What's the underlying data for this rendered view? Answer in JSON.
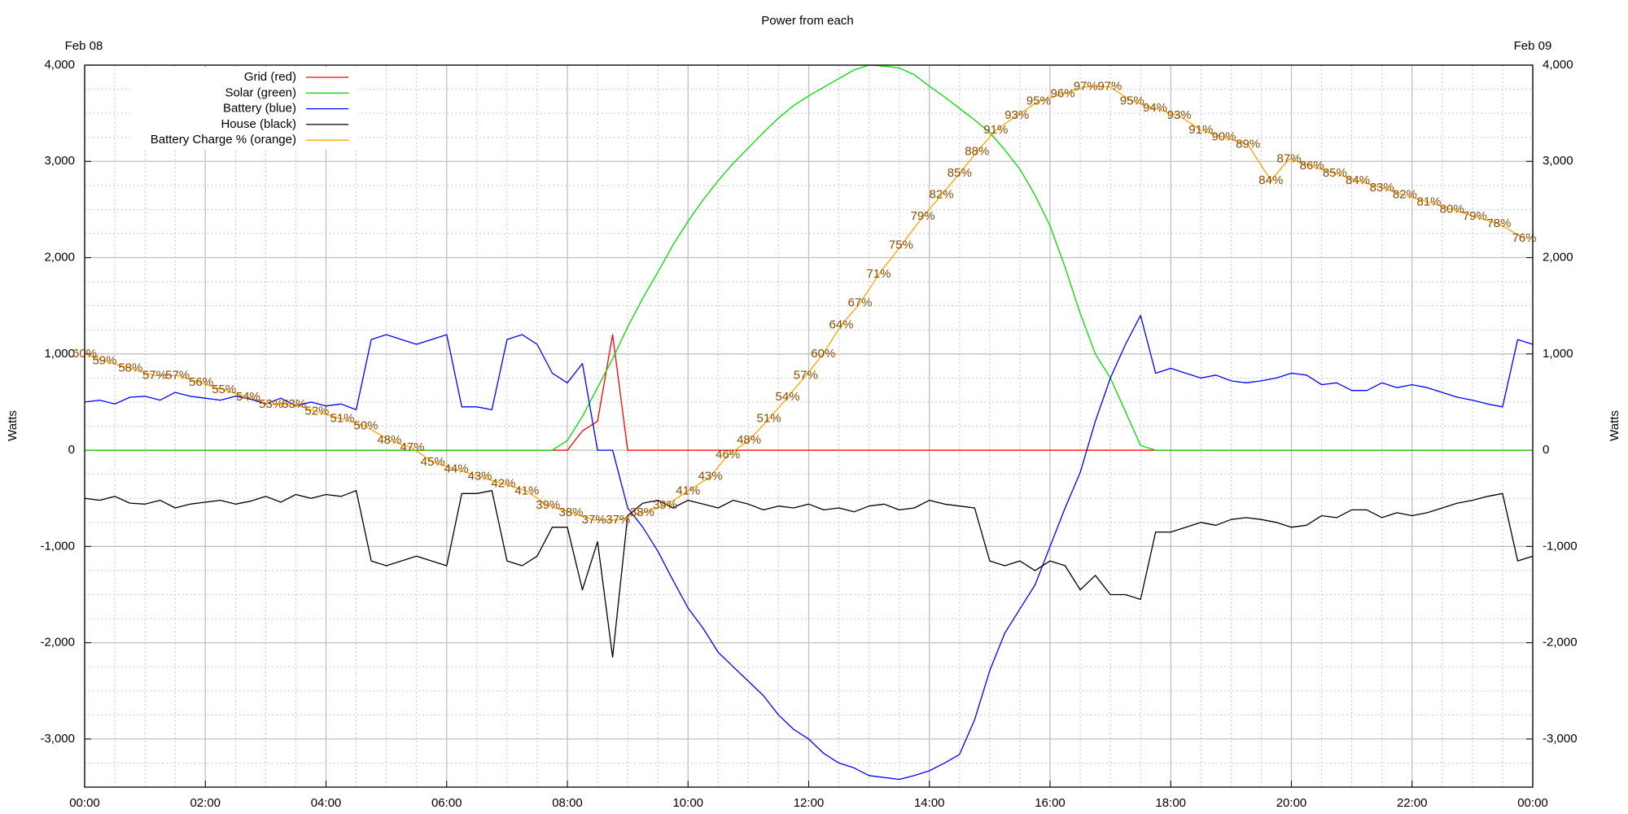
{
  "chart_data": {
    "type": "line",
    "title": "Power from each",
    "ylabel": "Watts",
    "y2label": "Watts",
    "top_labels": [
      "Feb 08",
      "Feb 09"
    ],
    "xlim": [
      0,
      24
    ],
    "xticks": [
      {
        "value": 0,
        "label": "00:00"
      },
      {
        "value": 2,
        "label": "02:00"
      },
      {
        "value": 4,
        "label": "04:00"
      },
      {
        "value": 6,
        "label": "06:00"
      },
      {
        "value": 8,
        "label": "08:00"
      },
      {
        "value": 10,
        "label": "10:00"
      },
      {
        "value": 12,
        "label": "12:00"
      },
      {
        "value": 14,
        "label": "14:00"
      },
      {
        "value": 16,
        "label": "16:00"
      },
      {
        "value": 18,
        "label": "18:00"
      },
      {
        "value": 20,
        "label": "20:00"
      },
      {
        "value": 22,
        "label": "22:00"
      },
      {
        "value": 24,
        "label": "00:00"
      }
    ],
    "ylim": [
      -3500,
      4000
    ],
    "yticks": [
      {
        "value": -3000,
        "label": "-3,000"
      },
      {
        "value": -2000,
        "label": "-2,000"
      },
      {
        "value": -1000,
        "label": "-1,000"
      },
      0,
      {
        "value": 1000,
        "label": "1,000"
      },
      {
        "value": 2000,
        "label": "2,000"
      },
      {
        "value": 3000,
        "label": "3,000"
      },
      {
        "value": 4000,
        "label": "4,000"
      }
    ],
    "y2lim": [
      -3500,
      4000
    ],
    "y2ticks": [
      {
        "value": -3000,
        "label": "-3,000"
      },
      {
        "value": -2000,
        "label": "-2,000"
      },
      {
        "value": -1000,
        "label": "-1,000"
      },
      0,
      {
        "value": 1000,
        "label": "1,000"
      },
      {
        "value": 2000,
        "label": "2,000"
      },
      {
        "value": 3000,
        "label": "3,000"
      },
      {
        "value": 4000,
        "label": "4,000"
      }
    ],
    "y3lim": [
      0,
      100
    ],
    "grid": true,
    "legend": "upper left",
    "x": [
      0,
      0.25,
      0.5,
      0.75,
      1,
      1.25,
      1.5,
      1.75,
      2,
      2.25,
      2.5,
      2.75,
      3,
      3.25,
      3.5,
      3.75,
      4,
      4.25,
      4.5,
      4.75,
      5,
      5.25,
      5.5,
      5.75,
      6,
      6.25,
      6.5,
      6.75,
      7,
      7.25,
      7.5,
      7.75,
      8,
      8.25,
      8.5,
      8.75,
      9,
      9.25,
      9.5,
      9.75,
      10,
      10.25,
      10.5,
      10.75,
      11,
      11.25,
      11.5,
      11.75,
      12,
      12.25,
      12.5,
      12.75,
      13,
      13.25,
      13.5,
      13.75,
      14,
      14.25,
      14.5,
      14.75,
      15,
      15.25,
      15.5,
      15.75,
      16,
      16.25,
      16.5,
      16.75,
      17,
      17.25,
      17.5,
      17.75,
      18,
      18.25,
      18.5,
      18.75,
      19,
      19.25,
      19.5,
      19.75,
      20,
      20.25,
      20.5,
      20.75,
      21,
      21.25,
      21.5,
      21.75,
      22,
      22.25,
      22.5,
      22.75,
      23,
      23.25,
      23.5,
      23.75,
      24
    ],
    "series": [
      {
        "name": "Grid (red)",
        "color": "#ff0000",
        "values": [
          0,
          0,
          0,
          0,
          0,
          0,
          0,
          0,
          0,
          0,
          0,
          0,
          0,
          0,
          0,
          0,
          0,
          0,
          0,
          0,
          0,
          0,
          0,
          0,
          0,
          0,
          0,
          0,
          0,
          0,
          0,
          0,
          0,
          200,
          300,
          1200,
          0,
          0,
          0,
          0,
          0,
          0,
          0,
          0,
          0,
          0,
          0,
          0,
          0,
          0,
          0,
          0,
          0,
          0,
          0,
          0,
          0,
          0,
          0,
          0,
          0,
          0,
          0,
          0,
          0,
          0,
          0,
          0,
          0,
          0,
          0,
          0,
          0,
          0,
          0,
          0,
          0,
          0,
          0,
          0,
          0,
          0,
          0,
          0,
          0,
          0,
          0,
          0,
          0,
          0,
          0,
          0,
          0,
          0,
          0,
          0,
          0
        ]
      },
      {
        "name": "Solar (green)",
        "color": "#00dd00",
        "values": [
          0,
          0,
          0,
          0,
          0,
          0,
          0,
          0,
          0,
          0,
          0,
          0,
          0,
          0,
          0,
          0,
          0,
          0,
          0,
          0,
          0,
          0,
          0,
          0,
          0,
          0,
          0,
          0,
          0,
          0,
          0,
          0,
          100,
          350,
          650,
          950,
          1280,
          1580,
          1850,
          2130,
          2380,
          2600,
          2800,
          2980,
          3140,
          3300,
          3450,
          3580,
          3680,
          3770,
          3860,
          3950,
          4000,
          3990,
          3970,
          3900,
          3780,
          3670,
          3550,
          3430,
          3300,
          3120,
          2920,
          2650,
          2330,
          1900,
          1420,
          1000,
          750,
          400,
          50,
          0,
          0,
          0,
          0,
          0,
          0,
          0,
          0,
          0,
          0,
          0,
          0,
          0,
          0,
          0,
          0,
          0,
          0,
          0,
          0,
          0,
          0,
          0,
          0,
          0,
          0
        ]
      },
      {
        "name": "Battery (blue)",
        "color": "#0000ff",
        "values": [
          500,
          520,
          480,
          550,
          560,
          520,
          600,
          560,
          540,
          520,
          560,
          530,
          480,
          540,
          460,
          500,
          460,
          480,
          420,
          1150,
          1200,
          1150,
          1100,
          1150,
          1200,
          450,
          450,
          420,
          1150,
          1200,
          1100,
          800,
          700,
          900,
          0,
          0,
          -600,
          -800,
          -1050,
          -1350,
          -1640,
          -1850,
          -2100,
          -2250,
          -2400,
          -2550,
          -2750,
          -2900,
          -3000,
          -3150,
          -3250,
          -3300,
          -3380,
          -3400,
          -3420,
          -3380,
          -3330,
          -3250,
          -3160,
          -2800,
          -2290,
          -1900,
          -1650,
          -1400,
          -1000,
          -600,
          -230,
          300,
          750,
          1100,
          1400,
          800,
          850,
          800,
          750,
          780,
          720,
          700,
          720,
          750,
          800,
          780,
          680,
          700,
          620,
          620,
          700,
          650,
          680,
          650,
          600,
          550,
          520,
          480,
          450,
          1150,
          1100
        ]
      },
      {
        "name": "House (black)",
        "color": "#000000",
        "values": [
          -500,
          -520,
          -480,
          -550,
          -560,
          -520,
          -600,
          -560,
          -540,
          -520,
          -560,
          -530,
          -480,
          -540,
          -460,
          -500,
          -460,
          -480,
          -420,
          -1150,
          -1200,
          -1150,
          -1100,
          -1150,
          -1200,
          -450,
          -450,
          -420,
          -1150,
          -1200,
          -1100,
          -800,
          -800,
          -1450,
          -950,
          -2150,
          -680,
          -550,
          -520,
          -600,
          -520,
          -560,
          -600,
          -520,
          -560,
          -620,
          -580,
          -600,
          -560,
          -620,
          -600,
          -640,
          -580,
          -560,
          -620,
          -600,
          -520,
          -560,
          -580,
          -600,
          -1150,
          -1200,
          -1150,
          -1250,
          -1150,
          -1200,
          -1450,
          -1300,
          -1500,
          -1500,
          -1550,
          -850,
          -850,
          -800,
          -750,
          -780,
          -720,
          -700,
          -720,
          -750,
          -800,
          -780,
          -680,
          -700,
          -620,
          -620,
          -700,
          -650,
          -680,
          -650,
          -600,
          -550,
          -520,
          -480,
          -450,
          -1150,
          -1100
        ]
      },
      {
        "name": "Battery Charge % (orange)",
        "color": "#ffa500",
        "label_color": "#8b4a00",
        "axis": "y3",
        "x": [
          0,
          0.33,
          0.76,
          1.16,
          1.54,
          1.93,
          2.31,
          2.71,
          3.09,
          3.47,
          3.85,
          4.27,
          4.66,
          5.05,
          5.43,
          5.77,
          6.16,
          6.55,
          6.94,
          7.33,
          7.68,
          8.06,
          8.44,
          8.84,
          9.24,
          9.62,
          10.0,
          10.37,
          10.66,
          11.01,
          11.34,
          11.65,
          11.95,
          12.24,
          12.54,
          12.85,
          13.16,
          13.53,
          13.89,
          14.2,
          14.5,
          14.79,
          15.1,
          15.45,
          15.81,
          16.21,
          16.59,
          16.99,
          17.36,
          17.74,
          18.14,
          18.5,
          18.88,
          19.28,
          19.66,
          19.96,
          20.34,
          20.72,
          21.1,
          21.5,
          21.88,
          22.28,
          22.66,
          23.04,
          23.44,
          23.86
        ],
        "values": [
          60,
          59,
          58,
          57,
          57,
          56,
          55,
          54,
          53,
          53,
          52,
          51,
          50,
          48,
          47,
          45,
          44,
          43,
          42,
          41,
          39,
          38,
          37,
          37,
          38,
          39,
          41,
          43,
          46,
          48,
          51,
          54,
          57,
          60,
          64,
          67,
          71,
          75,
          79,
          82,
          85,
          88,
          91,
          93,
          95,
          96,
          97,
          97,
          95,
          94,
          93,
          91,
          90,
          89,
          84,
          87,
          86,
          85,
          84,
          83,
          82,
          81,
          80,
          79,
          78,
          76
        ],
        "value_labels": [
          "60%",
          "59%",
          "58%",
          "57%",
          "57%",
          "56%",
          "55%",
          "54%",
          "53%",
          "53%",
          "52%",
          "51%",
          "50%",
          "48%",
          "47%",
          "45%",
          "44%",
          "43%",
          "42%",
          "41%",
          "39%",
          "38%",
          "37%",
          "37%",
          "38%",
          "39%",
          "41%",
          "43%",
          "46%",
          "48%",
          "51%",
          "54%",
          "57%",
          "60%",
          "64%",
          "67%",
          "71%",
          "75%",
          "79%",
          "82%",
          "85%",
          "88%",
          "91%",
          "93%",
          "95%",
          "96%",
          "97%",
          "97%",
          "95%",
          "94%",
          "93%",
          "91%",
          "90%",
          "89%",
          "84%",
          "87%",
          "86%",
          "85%",
          "84%",
          "83%",
          "82%",
          "81%",
          "80%",
          "79%",
          "78%",
          "76%"
        ]
      }
    ]
  }
}
